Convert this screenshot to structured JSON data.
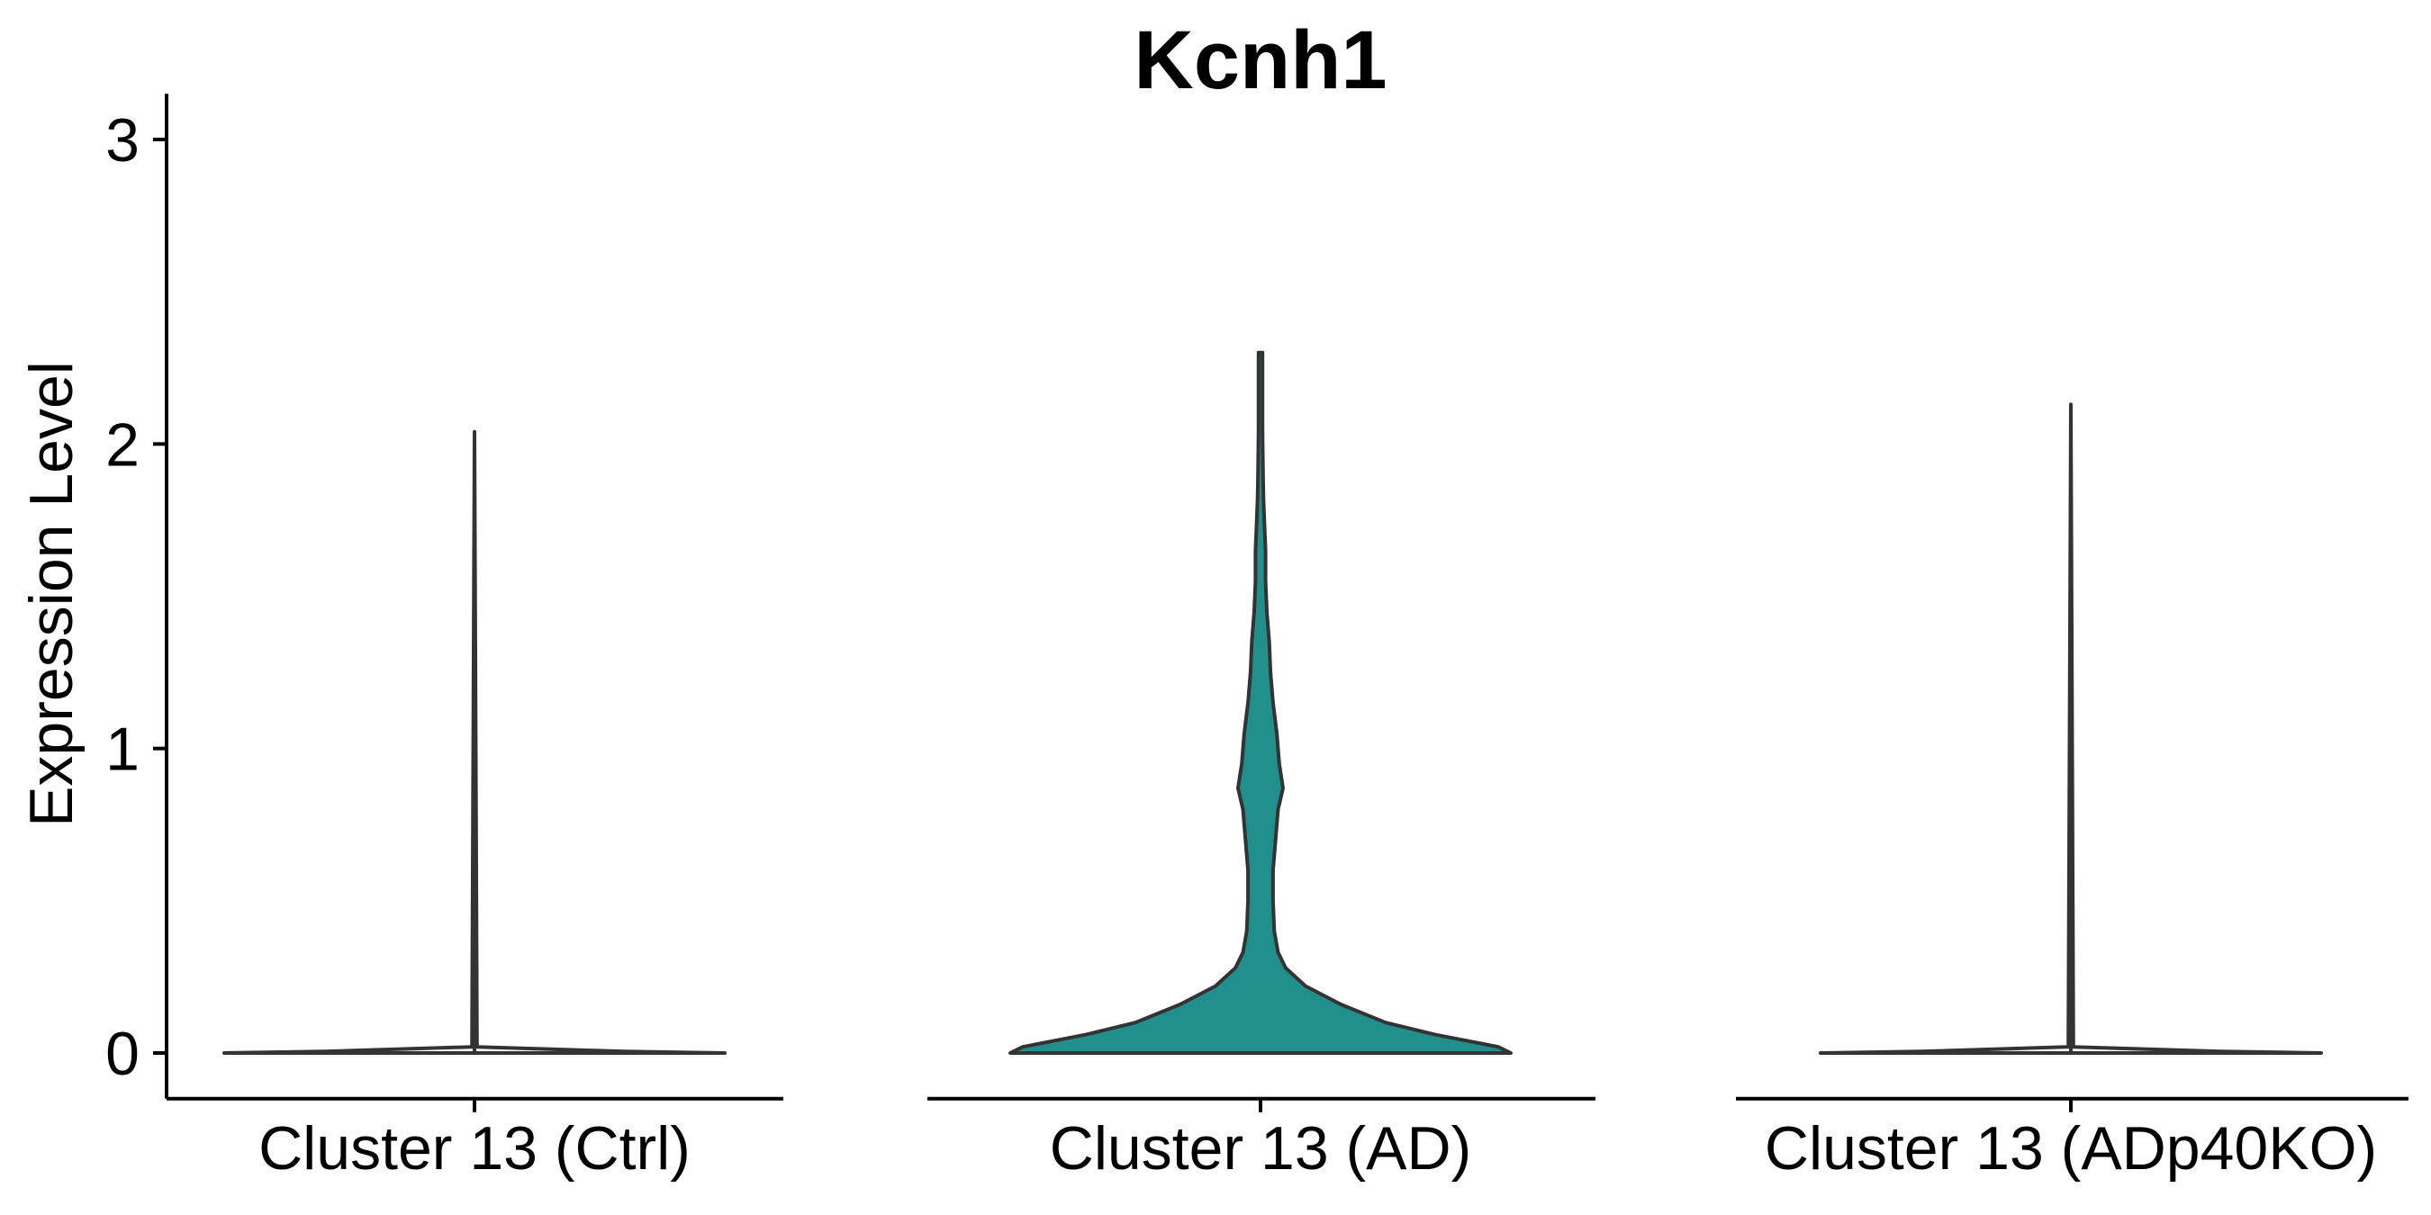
{
  "chart_data": {
    "type": "violin",
    "title": "Kcnh1",
    "xlabel": "",
    "ylabel": "Expression Level",
    "ylim": [
      -0.15,
      3.15
    ],
    "yticks": [
      0,
      1,
      2,
      3
    ],
    "ytick_labels": [
      "0",
      "1",
      "2",
      "3"
    ],
    "grid": false,
    "legend": "none",
    "categories": [
      "Cluster 13 (Ctrl)",
      "Cluster 13 (AD)",
      "Cluster 13 (ADp40KO)"
    ],
    "violins": [
      {
        "category": "Cluster 13 (Ctrl)",
        "fill": "none",
        "max": 2.04,
        "profile": [
          [
            0.0,
            1.0
          ],
          [
            0.005,
            0.6
          ],
          [
            0.02,
            0.01
          ],
          [
            2.04,
            0.0
          ]
        ]
      },
      {
        "category": "Cluster 13 (AD)",
        "fill": "#21908C",
        "max": 2.3,
        "profile": [
          [
            0.0,
            1.0
          ],
          [
            0.02,
            0.95
          ],
          [
            0.06,
            0.7
          ],
          [
            0.1,
            0.5
          ],
          [
            0.16,
            0.32
          ],
          [
            0.22,
            0.18
          ],
          [
            0.28,
            0.1
          ],
          [
            0.33,
            0.07
          ],
          [
            0.4,
            0.055
          ],
          [
            0.5,
            0.05
          ],
          [
            0.6,
            0.05
          ],
          [
            0.7,
            0.06
          ],
          [
            0.8,
            0.07
          ],
          [
            0.87,
            0.09
          ],
          [
            0.95,
            0.075
          ],
          [
            1.05,
            0.065
          ],
          [
            1.15,
            0.05
          ],
          [
            1.25,
            0.04
          ],
          [
            1.35,
            0.035
          ],
          [
            1.45,
            0.025
          ],
          [
            1.55,
            0.02
          ],
          [
            1.65,
            0.02
          ],
          [
            1.75,
            0.015
          ],
          [
            1.82,
            0.012
          ],
          [
            1.9,
            0.01
          ],
          [
            2.05,
            0.008
          ],
          [
            2.2,
            0.008
          ],
          [
            2.3,
            0.008
          ]
        ]
      },
      {
        "category": "Cluster 13 (ADp40KO)",
        "fill": "none",
        "max": 2.13,
        "profile": [
          [
            0.0,
            1.0
          ],
          [
            0.005,
            0.6
          ],
          [
            0.02,
            0.01
          ],
          [
            2.13,
            0.0
          ]
        ]
      }
    ]
  }
}
